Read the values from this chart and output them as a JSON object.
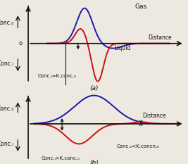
{
  "bg_color": "#ede8e0",
  "line_color_blue": "#1a1aaa",
  "line_color_red": "#cc1111",
  "axis_color": "#111111",
  "text_color": "#111111",
  "panel_a": {
    "title": "Gas",
    "label_conc0": "Conc.₀",
    "label_concL": "Conc.ₗ",
    "label_o": "o",
    "label_liquid": "Liquid",
    "label_distance": "Distance",
    "label_eq": "Conc.ₗ=K.conc.₀"
  },
  "panel_b": {
    "label_conc0": "Conc.₀",
    "label_concL": "Conc.ₗ",
    "label_distance": "Distance",
    "label_gt": "Conc.ₗ>K.conc.₀",
    "label_lt": "Conc.₀<K.concn.₀",
    "label_a": "(a)",
    "label_b": "(b)"
  }
}
